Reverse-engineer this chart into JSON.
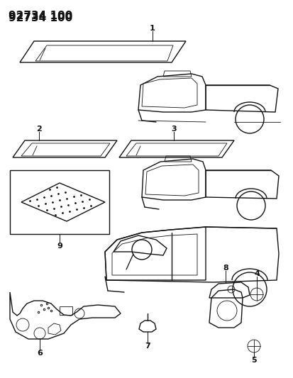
{
  "title": "92734 100",
  "bg_color": "#ffffff",
  "line_color": "#111111",
  "lw": 1.0,
  "tlw": 0.6,
  "label_fs": 8,
  "title_fs": 11
}
